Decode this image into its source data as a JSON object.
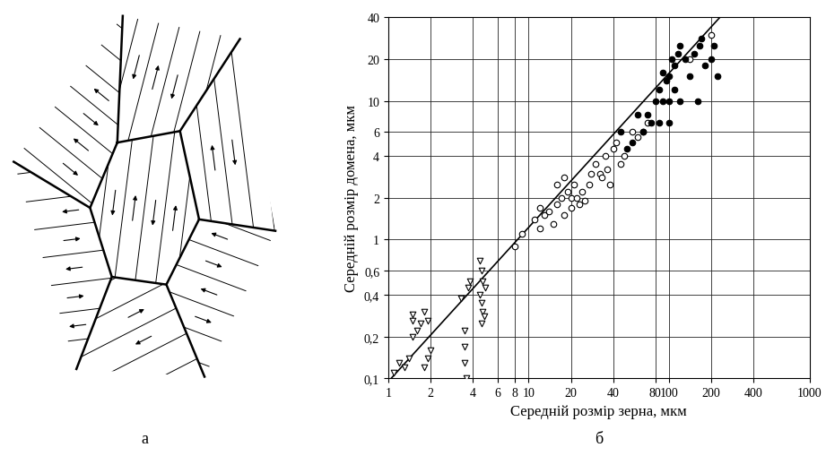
{
  "diagram": {
    "label": "а"
  },
  "chart_data": {
    "type": "scatter",
    "label": "б",
    "x_label": "Середній розмір зерна, мкм",
    "y_label": "Середній розмір домена, мкм",
    "log": true,
    "grid": true,
    "xlim": [
      1,
      1000
    ],
    "ylim": [
      0.1,
      40
    ],
    "xticks": [
      1,
      2,
      4,
      6,
      8,
      10,
      20,
      40,
      80,
      100,
      200,
      400,
      1000
    ],
    "yticks": [
      {
        "value": 0.1,
        "label": "0,1"
      },
      {
        "value": 0.2,
        "label": "0,2"
      },
      {
        "value": 0.4,
        "label": "0,4"
      },
      {
        "value": 0.6,
        "label": "0,6"
      },
      1,
      2,
      4,
      6,
      10,
      20,
      40
    ],
    "series": [
      {
        "type": "scatter",
        "marker": "triangle_down",
        "color": "#000000",
        "x": [
          1.1,
          1.2,
          1.3,
          1.4,
          1.5,
          1.5,
          1.5,
          1.6,
          1.7,
          1.8,
          1.8,
          1.9,
          2.0,
          1.9,
          3.3,
          3.5,
          3.5,
          3.6,
          3.7,
          3.8,
          4.5,
          4.6,
          4.5,
          4.6,
          4.7,
          4.8,
          4.7,
          4.9,
          4.6,
          3.5
        ],
        "values": [
          0.11,
          0.13,
          0.12,
          0.14,
          0.2,
          0.26,
          0.29,
          0.22,
          0.25,
          0.3,
          0.12,
          0.14,
          0.16,
          0.26,
          0.38,
          0.22,
          0.17,
          0.1,
          0.45,
          0.5,
          0.7,
          0.6,
          0.4,
          0.35,
          0.3,
          0.28,
          0.5,
          0.45,
          0.25,
          0.13
        ]
      },
      {
        "type": "scatter",
        "marker": "circle",
        "color": "#000000",
        "x": [
          8,
          9,
          12,
          13,
          14,
          15,
          16,
          17,
          18,
          19,
          20,
          20,
          21,
          22,
          23,
          24,
          25,
          27,
          28,
          30,
          32,
          33,
          35,
          36,
          38,
          40,
          42,
          45,
          48,
          55,
          60,
          65,
          70,
          12,
          11,
          200,
          140,
          16,
          18
        ],
        "values": [
          0.9,
          1.1,
          1.2,
          1.5,
          1.6,
          1.3,
          1.8,
          2,
          1.5,
          2.2,
          1.7,
          2.0,
          2.5,
          2,
          1.8,
          2.2,
          1.9,
          2.5,
          3,
          3.5,
          3,
          2.8,
          4,
          3.2,
          2.5,
          4.5,
          5,
          3.5,
          4,
          6,
          5.5,
          6,
          7,
          1.7,
          1.4,
          30,
          20,
          2.5,
          2.8
        ]
      },
      {
        "type": "scatter",
        "marker": "filled_circle",
        "color": "#000000",
        "x": [
          45,
          50,
          55,
          60,
          65,
          75,
          80,
          85,
          90,
          95,
          100,
          100,
          105,
          110,
          110,
          115,
          120,
          120,
          130,
          140,
          150,
          160,
          165,
          170,
          180,
          200,
          220,
          210,
          85,
          70,
          100,
          90
        ],
        "values": [
          6,
          4.5,
          5,
          8,
          6,
          7,
          10,
          12,
          10,
          14,
          10,
          15,
          20,
          18,
          12,
          22,
          10,
          25,
          20,
          15,
          22,
          10,
          25,
          28,
          18,
          20,
          15,
          25,
          7,
          8,
          7,
          16
        ]
      },
      {
        "type": "line",
        "line_style": "solid",
        "color": "#000000",
        "x": [
          1.05,
          230
        ],
        "values": [
          0.1,
          40
        ]
      }
    ]
  }
}
